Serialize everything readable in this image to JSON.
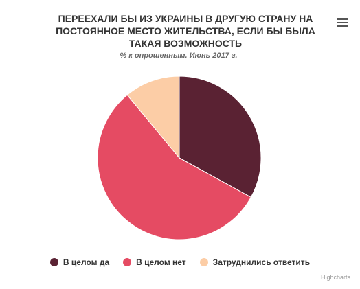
{
  "chart_data": {
    "type": "pie",
    "title": "ПЕРЕЕХАЛИ БЫ ИЗ УКРАИНЫ В ДРУГУЮ СТРАНУ НА ПОСТОЯННОЕ МЕСТО ЖИТЕЛЬСТВА, ЕСЛИ БЫ БЫЛА ТАКАЯ ВОЗМОЖНОСТЬ",
    "subtitle": "% к опрошенным. Июнь 2017 г.",
    "legend_position": "bottom",
    "series": [
      {
        "slices": [
          {
            "name": "В целом да",
            "value": 33,
            "color": "#5a2233"
          },
          {
            "name": "В целом нет",
            "value": 56,
            "color": "#e54b63"
          },
          {
            "name": "Затруднились ответить",
            "value": 11,
            "color": "#fccda6"
          }
        ]
      }
    ]
  },
  "menu": {
    "icon": "hamburger-menu-icon"
  },
  "credits": "Highcharts"
}
